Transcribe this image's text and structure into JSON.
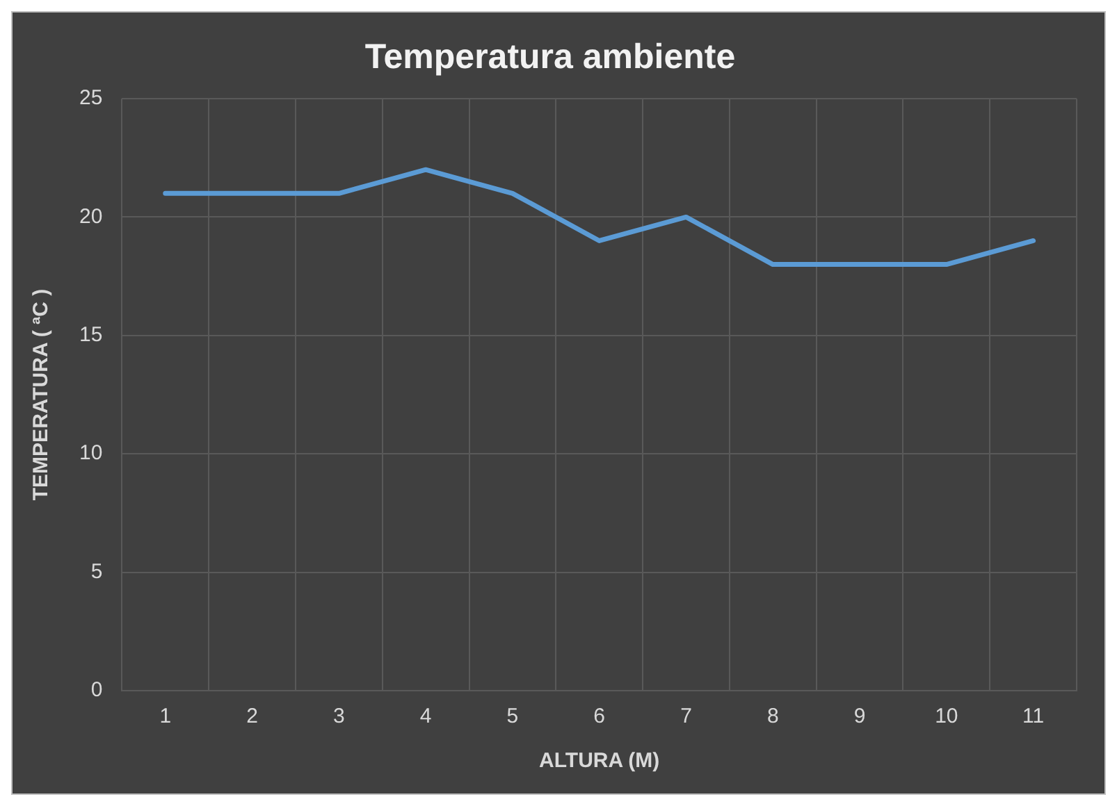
{
  "chart_data": {
    "type": "line",
    "title": "Temperatura ambiente",
    "xlabel": "ALTURA (M)",
    "ylabel": "TEMPERATURA ( ªC )",
    "categories": [
      "1",
      "2",
      "3",
      "4",
      "5",
      "6",
      "7",
      "8",
      "9",
      "10",
      "11"
    ],
    "series": [
      {
        "color": "#5b9bd5",
        "values": [
          21,
          21,
          21,
          22,
          21,
          19,
          20,
          18,
          18,
          18,
          19
        ]
      }
    ],
    "ylim": [
      0,
      25
    ],
    "yticks": [
      0,
      5,
      10,
      15,
      20,
      25
    ],
    "grid": true,
    "legend": false,
    "marker": "none",
    "line_style": "solid"
  }
}
